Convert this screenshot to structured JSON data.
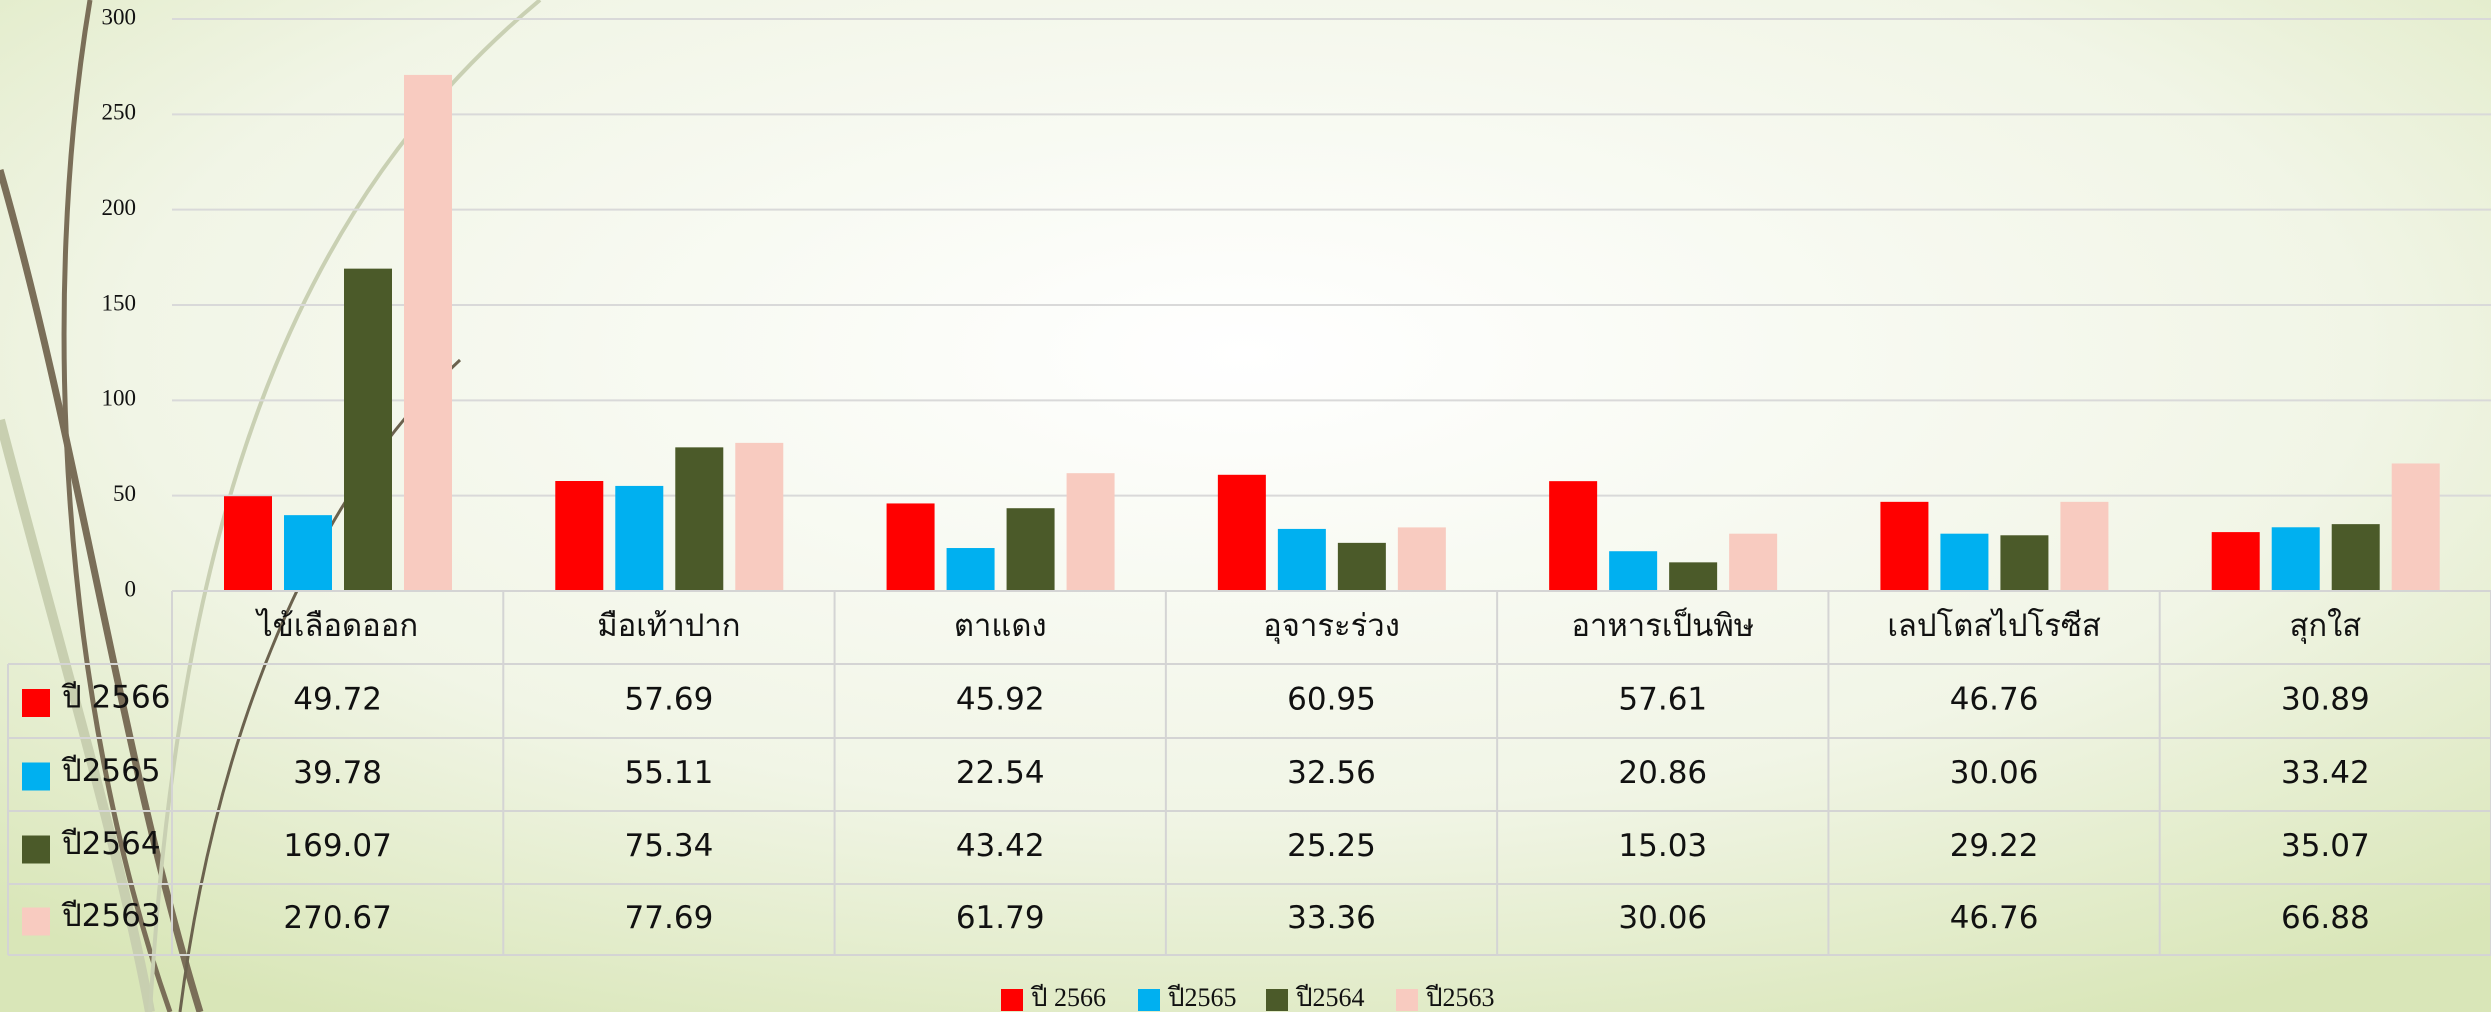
{
  "chart_data": {
    "type": "bar",
    "categories": [
      "ไข้เลือดออก",
      "มือเท้าปาก",
      "ตาแดง",
      "อุจาระร่วง",
      "อาหารเป็นพิษ",
      "เลปโตสไปโรซีส",
      "สุกใส"
    ],
    "series": [
      {
        "name": "ปี 2566",
        "color": "#ff0000",
        "values": [
          49.72,
          57.69,
          45.92,
          60.95,
          57.61,
          46.76,
          30.89
        ]
      },
      {
        "name": "ปี2565",
        "color": "#00b0f0",
        "values": [
          39.78,
          55.11,
          22.54,
          32.56,
          20.86,
          30.06,
          33.42
        ]
      },
      {
        "name": "ปี2564",
        "color": "#4b5a29",
        "values": [
          169.07,
          75.34,
          43.42,
          25.25,
          15.03,
          29.22,
          35.07
        ]
      },
      {
        "name": "ปี2563",
        "color": "#f8cbc0",
        "values": [
          270.67,
          77.69,
          61.79,
          33.36,
          30.06,
          46.76,
          66.88
        ]
      }
    ],
    "ylim": [
      0,
      300
    ],
    "yticks": [
      0,
      50,
      100,
      150,
      200,
      250,
      300
    ],
    "grid": true
  }
}
